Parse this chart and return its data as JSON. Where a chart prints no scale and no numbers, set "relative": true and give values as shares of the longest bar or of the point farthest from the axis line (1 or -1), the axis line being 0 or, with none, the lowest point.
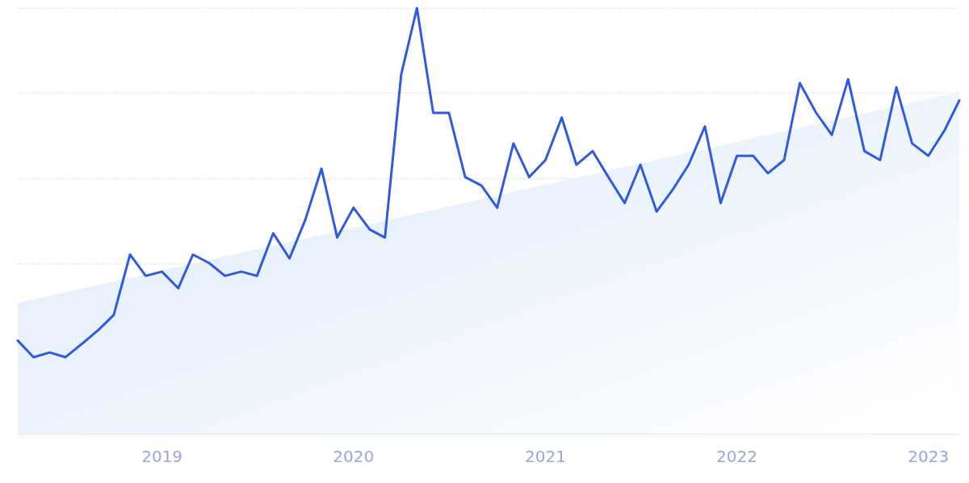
{
  "chart_data": {
    "type": "line",
    "relative": true,
    "grid": "y",
    "marker": "none",
    "line_style": "solid",
    "x": [
      "2018-04",
      "2018-05",
      "2018-06",
      "2018-07",
      "2018-08",
      "2018-09",
      "2018-10",
      "2018-11",
      "2018-12",
      "2019-01",
      "2019-02",
      "2019-03",
      "2019-04",
      "2019-05",
      "2019-06",
      "2019-07",
      "2019-08",
      "2019-09",
      "2019-10",
      "2019-11",
      "2019-12",
      "2020-01",
      "2020-02",
      "2020-03",
      "2020-04",
      "2020-05",
      "2020-06",
      "2020-07",
      "2020-08",
      "2020-09",
      "2020-10",
      "2020-11",
      "2020-12",
      "2021-01",
      "2021-02",
      "2021-03",
      "2021-04",
      "2021-05",
      "2021-06",
      "2021-07",
      "2021-08",
      "2021-09",
      "2021-10",
      "2021-11",
      "2021-12",
      "2022-01",
      "2022-02",
      "2022-03",
      "2022-04",
      "2022-05",
      "2022-06",
      "2022-07",
      "2022-08",
      "2022-09",
      "2022-10",
      "2022-11",
      "2022-12",
      "2023-01",
      "2023-02",
      "2023-03"
    ],
    "xlim": [
      "2018-04",
      "2023-03"
    ],
    "xticks": [
      "2019",
      "2020",
      "2021",
      "2022",
      "2023"
    ],
    "series": [
      {
        "type": "area",
        "color": "#dce9fa",
        "x": [
          "2018-04",
          "2023-03"
        ],
        "values": [
          0.307,
          0.803
        ]
      },
      {
        "color": "#2f5be0",
        "values": [
          0.219,
          0.18,
          0.191,
          0.18,
          0.211,
          0.243,
          0.279,
          0.421,
          0.371,
          0.381,
          0.342,
          0.421,
          0.401,
          0.371,
          0.381,
          0.371,
          0.471,
          0.412,
          0.502,
          0.623,
          0.461,
          0.531,
          0.48,
          0.461,
          0.844,
          1,
          0.754,
          0.754,
          0.603,
          0.583,
          0.531,
          0.682,
          0.603,
          0.643,
          0.743,
          0.632,
          0.664,
          0.603,
          0.542,
          0.632,
          0.522,
          0.574,
          0.632,
          0.722,
          0.542,
          0.653,
          0.653,
          0.612,
          0.643,
          0.824,
          0.754,
          0.702,
          0.833,
          0.664,
          0.643,
          0.814,
          0.682,
          0.653,
          0.713,
          0.783
        ]
      }
    ]
  }
}
